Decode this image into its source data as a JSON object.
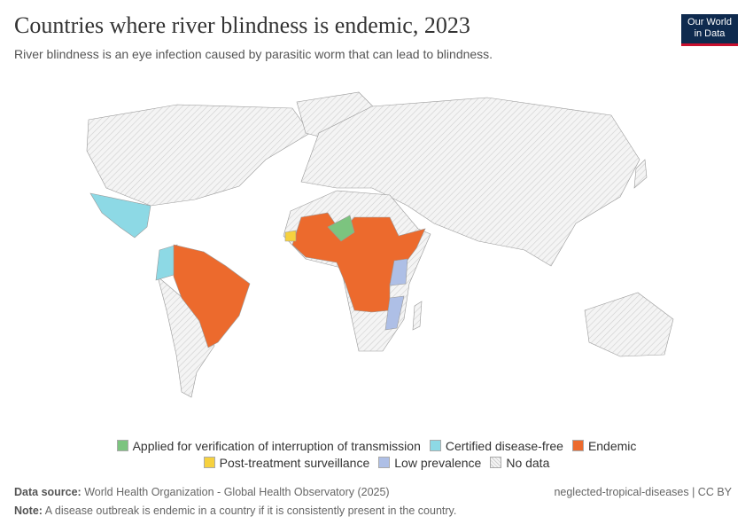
{
  "header": {
    "title": "Countries where river blindness is endemic, 2023",
    "subtitle": "River blindness is an eye infection caused by parasitic worm that can lead to blindness.",
    "logo": [
      "Our World",
      "in Data"
    ]
  },
  "legend": [
    {
      "label": "Applied for verification of interruption of transmission",
      "color": "#7cc47f"
    },
    {
      "label": "Certified disease-free",
      "color": "#8dd9e5"
    },
    {
      "label": "Endemic",
      "color": "#ec6a2d"
    },
    {
      "label": "Post-treatment surveillance",
      "color": "#f6d13e"
    },
    {
      "label": "Low prevalence",
      "color": "#aebfe6"
    },
    {
      "label": "No data",
      "color": "#f2f2f2"
    }
  ],
  "footer": {
    "source_label": "Data source:",
    "source": "World Health Organization - Global Health Observatory (2025)",
    "topic": "neglected-tropical-diseases | CC BY",
    "note_label": "Note:",
    "note": "A disease outbreak is endemic in a country if it is consistently present in the country."
  }
}
